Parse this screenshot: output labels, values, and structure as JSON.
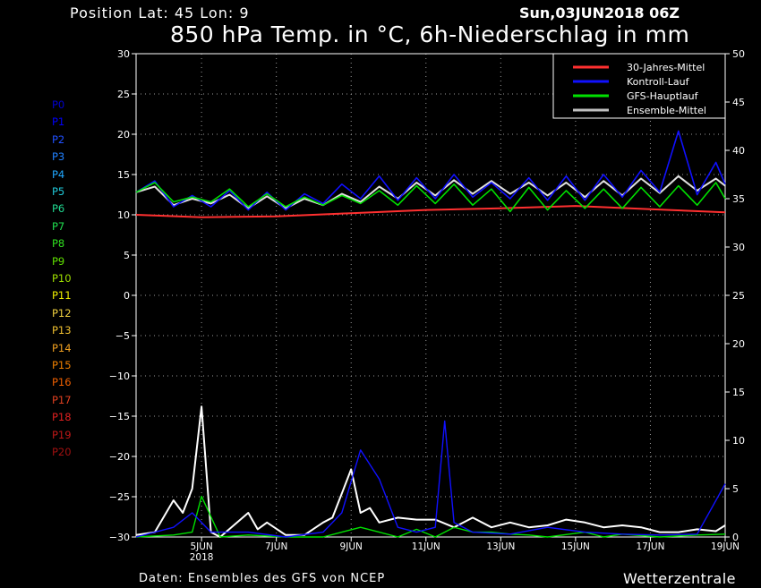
{
  "header": {
    "position": "Position   Lat: 45 Lon: 9",
    "datetime": "Sun,03JUN2018 06Z",
    "title": "850 hPa Temp. in °C, 6h-Niederschlag in mm"
  },
  "footer": {
    "source": "Daten: Ensembles des GFS von NCEP",
    "brand": "Wetterzentrale"
  },
  "members": [
    {
      "label": "P0",
      "color": "#0000d0"
    },
    {
      "label": "P1",
      "color": "#0000ff"
    },
    {
      "label": "P2",
      "color": "#2050ff"
    },
    {
      "label": "P3",
      "color": "#2080ff"
    },
    {
      "label": "P4",
      "color": "#20a8ff"
    },
    {
      "label": "P5",
      "color": "#20c8d8"
    },
    {
      "label": "P6",
      "color": "#20d890"
    },
    {
      "label": "P7",
      "color": "#20e050"
    },
    {
      "label": "P8",
      "color": "#30e020"
    },
    {
      "label": "P9",
      "color": "#60e000"
    },
    {
      "label": "P10",
      "color": "#a0e000"
    },
    {
      "label": "P11",
      "color": "#f0f000"
    },
    {
      "label": "P12",
      "color": "#f0d040"
    },
    {
      "label": "P13",
      "color": "#f0c030"
    },
    {
      "label": "P14",
      "color": "#f0a020"
    },
    {
      "label": "P15",
      "color": "#f08000"
    },
    {
      "label": "P16",
      "color": "#f06000"
    },
    {
      "label": "P17",
      "color": "#e04020"
    },
    {
      "label": "P18",
      "color": "#e02020"
    },
    {
      "label": "P19",
      "color": "#c01818"
    },
    {
      "label": "P20",
      "color": "#a01010"
    }
  ],
  "chart_data": {
    "type": "line",
    "title": "850 hPa Temp. in °C, 6h-Niederschlag in mm",
    "x_start": "2018-06-03T06Z",
    "x_end": "2018-06-19T00Z",
    "x_ticks": [
      {
        "date": "2018-06-05",
        "label": "5JUN",
        "sublabel": "2018"
      },
      {
        "date": "2018-06-07",
        "label": "7JUN"
      },
      {
        "date": "2018-06-09",
        "label": "9JUN"
      },
      {
        "date": "2018-06-11",
        "label": "11JUN"
      },
      {
        "date": "2018-06-13",
        "label": "13JUN"
      },
      {
        "date": "2018-06-15",
        "label": "15JUN"
      },
      {
        "date": "2018-06-17",
        "label": "17JUN"
      },
      {
        "date": "2018-06-19",
        "label": "19JUN"
      }
    ],
    "y_left": {
      "min": -30,
      "max": 30,
      "ticks": [
        30,
        25,
        20,
        15,
        10,
        5,
        0,
        -5,
        -10,
        -15,
        -20,
        -25,
        -30
      ]
    },
    "y_right": {
      "min": 0,
      "max": 50,
      "ticks": [
        50,
        45,
        40,
        35,
        30,
        25,
        20,
        15,
        10,
        5,
        0
      ]
    },
    "grid": true,
    "legend_position": "top-right",
    "legend": [
      {
        "name": "30-Jahres-Mittel",
        "color": "#ff3030"
      },
      {
        "name": "Kontroll-Lauf",
        "color": "#1010ff"
      },
      {
        "name": "GFS-Hauptlauf",
        "color": "#00e000"
      },
      {
        "name": "Ensemble-Mittel",
        "color": "#c0c0c0"
      }
    ],
    "series": [
      {
        "name": "30-Jahres-Mittel",
        "axis": "left",
        "color": "#ff3030",
        "width": 2,
        "x": [
          "2018-06-03T06Z",
          "2018-06-05T00Z",
          "2018-06-07T00Z",
          "2018-06-09T00Z",
          "2018-06-11T00Z",
          "2018-06-13T00Z",
          "2018-06-15T00Z",
          "2018-06-17T00Z",
          "2018-06-19T00Z"
        ],
        "y": [
          10.0,
          9.7,
          9.8,
          10.2,
          10.6,
          10.8,
          11.1,
          10.7,
          10.3
        ]
      },
      {
        "name": "Ensemble-Mittel",
        "axis": "left",
        "color": "#e0e0e0",
        "width": 2,
        "x": [
          "2018-06-03T06Z",
          "2018-06-03T18Z",
          "2018-06-04T06Z",
          "2018-06-04T18Z",
          "2018-06-05T06Z",
          "2018-06-05T18Z",
          "2018-06-06T06Z",
          "2018-06-06T18Z",
          "2018-06-07T06Z",
          "2018-06-07T18Z",
          "2018-06-08T06Z",
          "2018-06-08T18Z",
          "2018-06-09T06Z",
          "2018-06-09T18Z",
          "2018-06-10T06Z",
          "2018-06-10T18Z",
          "2018-06-11T06Z",
          "2018-06-11T18Z",
          "2018-06-12T06Z",
          "2018-06-12T18Z",
          "2018-06-13T06Z",
          "2018-06-13T18Z",
          "2018-06-14T06Z",
          "2018-06-14T18Z",
          "2018-06-15T06Z",
          "2018-06-15T18Z",
          "2018-06-16T06Z",
          "2018-06-16T18Z",
          "2018-06-17T06Z",
          "2018-06-17T18Z",
          "2018-06-18T06Z",
          "2018-06-18T18Z",
          "2018-06-19T00Z"
        ],
        "y": [
          12.8,
          13.5,
          11.2,
          12.0,
          11.4,
          12.5,
          10.8,
          12.3,
          10.8,
          12.0,
          11.2,
          12.6,
          11.6,
          13.5,
          12.0,
          14.0,
          12.4,
          14.3,
          12.6,
          14.2,
          12.6,
          14.0,
          12.4,
          14.0,
          12.2,
          14.2,
          12.4,
          14.5,
          12.7,
          14.8,
          13.0,
          14.5,
          13.6
        ]
      },
      {
        "name": "Kontroll-Lauf",
        "axis": "left",
        "color": "#1010ff",
        "width": 1.6,
        "x": [
          "2018-06-03T06Z",
          "2018-06-03T18Z",
          "2018-06-04T06Z",
          "2018-06-04T18Z",
          "2018-06-05T06Z",
          "2018-06-05T18Z",
          "2018-06-06T06Z",
          "2018-06-06T18Z",
          "2018-06-07T06Z",
          "2018-06-07T18Z",
          "2018-06-08T06Z",
          "2018-06-08T18Z",
          "2018-06-09T06Z",
          "2018-06-09T18Z",
          "2018-06-10T06Z",
          "2018-06-10T18Z",
          "2018-06-11T06Z",
          "2018-06-11T18Z",
          "2018-06-12T06Z",
          "2018-06-12T18Z",
          "2018-06-13T06Z",
          "2018-06-13T18Z",
          "2018-06-14T06Z",
          "2018-06-14T18Z",
          "2018-06-15T06Z",
          "2018-06-15T18Z",
          "2018-06-16T06Z",
          "2018-06-16T18Z",
          "2018-06-17T06Z",
          "2018-06-17T18Z",
          "2018-06-18T06Z",
          "2018-06-18T18Z",
          "2018-06-19T00Z"
        ],
        "y": [
          12.8,
          14.2,
          11.0,
          12.4,
          11.0,
          13.0,
          10.6,
          12.8,
          10.6,
          12.6,
          11.4,
          13.8,
          12.0,
          14.8,
          11.8,
          14.6,
          12.0,
          15.0,
          12.2,
          14.0,
          12.0,
          14.6,
          11.8,
          14.8,
          11.8,
          15.0,
          12.2,
          15.5,
          12.8,
          20.4,
          12.5,
          16.5,
          13.8
        ]
      },
      {
        "name": "GFS-Hauptlauf",
        "axis": "left",
        "color": "#00e000",
        "width": 1.6,
        "x": [
          "2018-06-03T06Z",
          "2018-06-03T18Z",
          "2018-06-04T06Z",
          "2018-06-04T18Z",
          "2018-06-05T06Z",
          "2018-06-05T18Z",
          "2018-06-06T06Z",
          "2018-06-06T18Z",
          "2018-06-07T06Z",
          "2018-06-07T18Z",
          "2018-06-08T06Z",
          "2018-06-08T18Z",
          "2018-06-09T06Z",
          "2018-06-09T18Z",
          "2018-06-10T06Z",
          "2018-06-10T18Z",
          "2018-06-11T06Z",
          "2018-06-11T18Z",
          "2018-06-12T06Z",
          "2018-06-12T18Z",
          "2018-06-13T06Z",
          "2018-06-13T18Z",
          "2018-06-14T06Z",
          "2018-06-14T18Z",
          "2018-06-15T06Z",
          "2018-06-15T18Z",
          "2018-06-16T06Z",
          "2018-06-16T18Z",
          "2018-06-17T06Z",
          "2018-06-17T18Z",
          "2018-06-18T06Z",
          "2018-06-18T18Z",
          "2018-06-19T00Z"
        ],
        "y": [
          12.8,
          14.0,
          11.6,
          12.2,
          11.6,
          13.2,
          11.0,
          12.6,
          11.0,
          12.2,
          11.2,
          12.4,
          11.4,
          13.0,
          11.2,
          13.6,
          11.4,
          13.8,
          11.2,
          13.2,
          10.4,
          13.4,
          10.6,
          13.0,
          10.8,
          13.2,
          10.8,
          13.4,
          11.0,
          13.6,
          11.2,
          14.0,
          12.0
        ]
      },
      {
        "name": "Niederschlag Ensemble-Mittel",
        "axis": "right",
        "color": "#ffffff",
        "width": 2,
        "x": [
          "2018-06-03T06Z",
          "2018-06-03T18Z",
          "2018-06-04T06Z",
          "2018-06-04T12Z",
          "2018-06-04T18Z",
          "2018-06-05T00Z",
          "2018-06-05T06Z",
          "2018-06-05T12Z",
          "2018-06-06T06Z",
          "2018-06-06T12Z",
          "2018-06-06T18Z",
          "2018-06-07T06Z",
          "2018-06-07T18Z",
          "2018-06-08T06Z",
          "2018-06-08T12Z",
          "2018-06-08T18Z",
          "2018-06-09T00Z",
          "2018-06-09T06Z",
          "2018-06-09T12Z",
          "2018-06-09T18Z",
          "2018-06-10T06Z",
          "2018-06-10T18Z",
          "2018-06-11T06Z",
          "2018-06-11T18Z",
          "2018-06-12T06Z",
          "2018-06-12T18Z",
          "2018-06-13T06Z",
          "2018-06-13T18Z",
          "2018-06-14T06Z",
          "2018-06-14T18Z",
          "2018-06-15T06Z",
          "2018-06-15T18Z",
          "2018-06-16T06Z",
          "2018-06-16T18Z",
          "2018-06-17T06Z",
          "2018-06-17T18Z",
          "2018-06-18T06Z",
          "2018-06-18T18Z",
          "2018-06-19T00Z"
        ],
        "y": [
          0.2,
          0.5,
          3.8,
          2.5,
          5.0,
          13.5,
          0.5,
          0.0,
          2.5,
          0.8,
          1.5,
          0.2,
          0.2,
          1.5,
          2.0,
          4.5,
          7.0,
          2.5,
          3.0,
          1.5,
          2.0,
          1.8,
          1.8,
          1.0,
          2.0,
          1.0,
          1.5,
          1.0,
          1.2,
          1.8,
          1.5,
          1.0,
          1.2,
          1.0,
          0.5,
          0.5,
          0.8,
          0.6,
          1.2
        ]
      },
      {
        "name": "Niederschlag GFS-Hauptlauf",
        "axis": "right",
        "color": "#00e000",
        "width": 1.4,
        "x": [
          "2018-06-03T06Z",
          "2018-06-04T06Z",
          "2018-06-04T18Z",
          "2018-06-05T00Z",
          "2018-06-05T12Z",
          "2018-06-06T06Z",
          "2018-06-07T06Z",
          "2018-06-08T06Z",
          "2018-06-08T18Z",
          "2018-06-09T06Z",
          "2018-06-09T18Z",
          "2018-06-10T06Z",
          "2018-06-10T18Z",
          "2018-06-11T06Z",
          "2018-06-11T18Z",
          "2018-06-12T06Z",
          "2018-06-12T18Z",
          "2018-06-13T06Z",
          "2018-06-13T18Z",
          "2018-06-14T06Z",
          "2018-06-15T06Z",
          "2018-06-15T18Z",
          "2018-06-16T06Z",
          "2018-06-17T06Z",
          "2018-06-18T06Z",
          "2018-06-19T00Z"
        ],
        "y": [
          0,
          0.2,
          0.5,
          4.2,
          0,
          0.2,
          0,
          0,
          0.5,
          1.0,
          0.5,
          0,
          0.8,
          0,
          1.0,
          0.5,
          0.5,
          0.3,
          0.2,
          0,
          0.5,
          0,
          0.3,
          0,
          0.2,
          0.3
        ]
      },
      {
        "name": "Niederschlag Kontroll-Lauf",
        "axis": "right",
        "color": "#1010ff",
        "width": 1.4,
        "x": [
          "2018-06-03T06Z",
          "2018-06-04T06Z",
          "2018-06-04T18Z",
          "2018-06-05T06Z",
          "2018-06-06T06Z",
          "2018-06-07T06Z",
          "2018-06-08T06Z",
          "2018-06-08T18Z",
          "2018-06-09T06Z",
          "2018-06-09T18Z",
          "2018-06-10T06Z",
          "2018-06-10T18Z",
          "2018-06-11T06Z",
          "2018-06-11T12Z",
          "2018-06-11T18Z",
          "2018-06-12T06Z",
          "2018-06-13T06Z",
          "2018-06-14T06Z",
          "2018-06-15T06Z",
          "2018-06-16T06Z",
          "2018-06-17T06Z",
          "2018-06-18T06Z",
          "2018-06-19T00Z"
        ],
        "y": [
          0,
          1.0,
          2.5,
          0.5,
          0.5,
          0,
          0.5,
          2.5,
          9.0,
          6.0,
          1.0,
          0.5,
          1.0,
          12.0,
          1.5,
          0.5,
          0.3,
          1.0,
          0.5,
          0.3,
          0.2,
          0.3,
          5.5
        ]
      }
    ]
  }
}
